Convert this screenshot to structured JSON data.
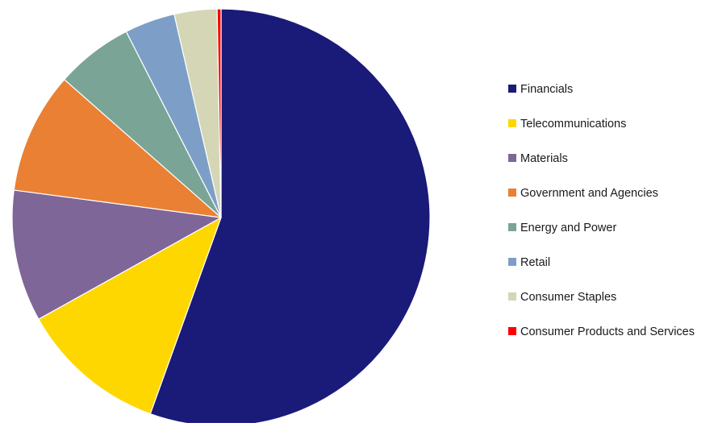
{
  "chart_data": {
    "type": "pie",
    "title": "",
    "legend_position": "right",
    "start_angle_deg": 0,
    "direction": "clockwise",
    "slices": [
      {
        "label": "Financials",
        "value": 55.5,
        "color": "#1a1a78"
      },
      {
        "label": "Telecommunications",
        "value": 11.4,
        "color": "#ffd700"
      },
      {
        "label": "Materials",
        "value": 10.2,
        "color": "#7e6699"
      },
      {
        "label": "Government and Agencies",
        "value": 9.4,
        "color": "#ea8033"
      },
      {
        "label": "Energy and Power",
        "value": 6.0,
        "color": "#7aa596"
      },
      {
        "label": "Retail",
        "value": 3.9,
        "color": "#7d9fc7"
      },
      {
        "label": "Consumer Staples",
        "value": 3.3,
        "color": "#d4d6b5"
      },
      {
        "label": "Consumer Products and Services",
        "value": 0.3,
        "color": "#ff0000"
      }
    ]
  }
}
